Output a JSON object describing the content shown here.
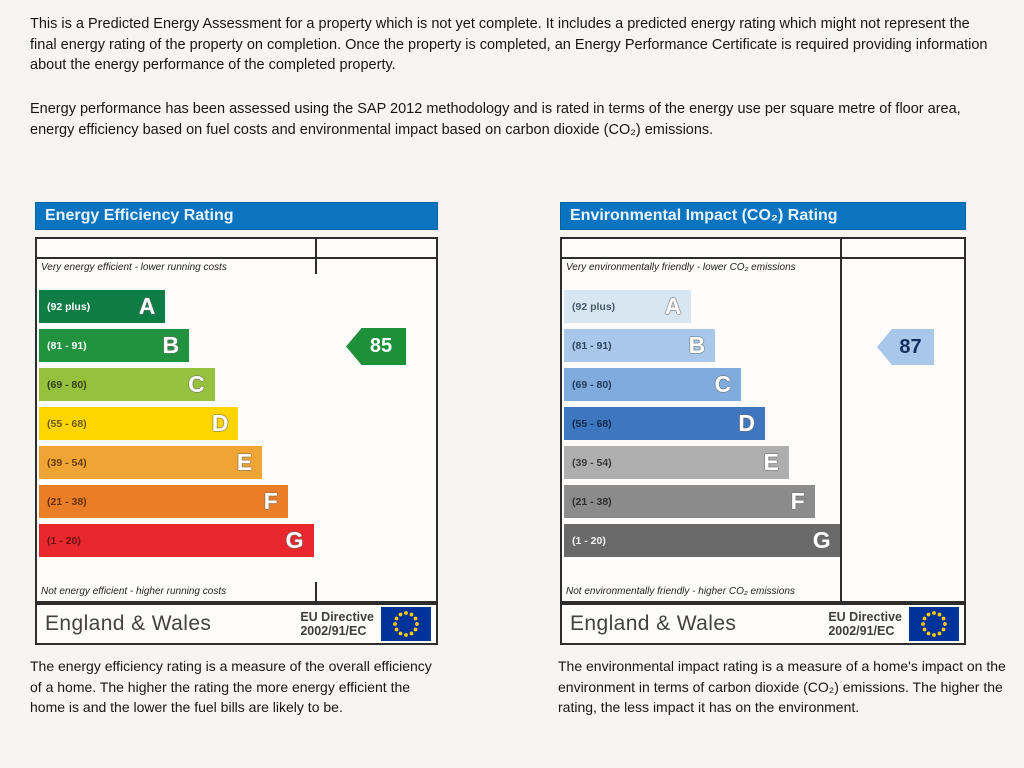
{
  "intro": {
    "paragraph_1": "This is a Predicted Energy Assessment for a property which is not yet complete. It includes a predicted energy rating which might not represent the final energy rating of the property on completion. Once the property is completed, an Energy Performance Certificate is required providing information about the energy performance of the completed property.",
    "paragraph_2": "Energy performance has been assessed using the SAP 2012 methodology and is rated in terms of the energy use per square metre of floor area, energy efficiency based on fuel costs and environmental impact based on carbon dioxide (CO₂) emissions."
  },
  "energy_chart": {
    "title": "Energy Efficiency Rating",
    "header_color": "#0b74c0",
    "top_caption": "Very energy efficient - lower running costs",
    "bottom_caption": "Not energy efficient - higher running costs",
    "current_rating": "85",
    "arrow_color": "#1e9038",
    "arrow_text_color": "#ffffff",
    "bands": [
      {
        "letter": "A",
        "range": "(92 plus)",
        "color": "#0e7c45",
        "label_color": "#ffffff",
        "width_pct": 32
      },
      {
        "letter": "B",
        "range": "(81 - 91)",
        "color": "#21923d",
        "label_color": "#ffffff",
        "width_pct": 38
      },
      {
        "letter": "C",
        "range": "(69 - 80)",
        "color": "#95c13d",
        "label_color": "#31411a",
        "width_pct": 44.5
      },
      {
        "letter": "D",
        "range": "(55 - 68)",
        "color": "#ffd500",
        "label_color": "#6b5d14",
        "width_pct": 50.5
      },
      {
        "letter": "E",
        "range": "(39 - 54)",
        "color": "#f0a433",
        "label_color": "#653f12",
        "width_pct": 56.5
      },
      {
        "letter": "F",
        "range": "(21 - 38)",
        "color": "#e97e27",
        "label_color": "#66300f",
        "width_pct": 63
      },
      {
        "letter": "G",
        "range": "(1 - 20)",
        "color": "#e8282d",
        "label_color": "#6d1212",
        "width_pct": 69.5
      }
    ],
    "footer": {
      "region": "England & Wales",
      "directive_line1": "EU Directive",
      "directive_line2": "2002/91/EC"
    },
    "description": "The energy efficiency rating is a measure of the overall efficiency of a home. The higher the rating the more energy efficient the home is and the lower the fuel bills are likely to be."
  },
  "environmental_chart": {
    "title": "Environmental Impact (CO₂) Rating",
    "header_color": "#0b74c0",
    "top_caption": "Very environmentally friendly - lower CO₂ emissions",
    "bottom_caption": "Not environmentally friendly - higher CO₂ emissions",
    "current_rating": "87",
    "arrow_color": "#a9c7e8",
    "arrow_text_color": "#16305e",
    "bands": [
      {
        "letter": "A",
        "range": "(92 plus)",
        "color": "#d8e6f2",
        "label_color": "#49596b",
        "width_pct": 32
      },
      {
        "letter": "B",
        "range": "(81 - 91)",
        "color": "#a9c7e8",
        "label_color": "#2e4763",
        "width_pct": 38
      },
      {
        "letter": "C",
        "range": "(69 - 80)",
        "color": "#7fabdd",
        "label_color": "#1d3a5f",
        "width_pct": 44.5
      },
      {
        "letter": "D",
        "range": "(55 - 68)",
        "color": "#3f76c0",
        "label_color": "#122a4d",
        "width_pct": 50.5
      },
      {
        "letter": "E",
        "range": "(39 - 54)",
        "color": "#aeaeae",
        "label_color": "#3a3a3a",
        "width_pct": 56.5
      },
      {
        "letter": "F",
        "range": "(21 - 38)",
        "color": "#8b8b8b",
        "label_color": "#2e2e2e",
        "width_pct": 63
      },
      {
        "letter": "G",
        "range": "(1 - 20)",
        "color": "#6a6a6a",
        "label_color": "#f2f2f2",
        "width_pct": 69.5
      }
    ],
    "footer": {
      "region": "England & Wales",
      "directive_line1": "EU Directive",
      "directive_line2": "2002/91/EC"
    },
    "description": "The environmental impact rating is a measure of a home's impact on the environment in terms of carbon dioxide (CO₂) emissions. The higher the rating, the less impact it has on the environment."
  },
  "flag_colors": {
    "field": "#003399",
    "stars": "#ffcc00"
  },
  "chart_data": [
    {
      "type": "bar",
      "title": "Energy Efficiency Rating",
      "categories": [
        "A (92 plus)",
        "B (81 - 91)",
        "C (69 - 80)",
        "D (55 - 68)",
        "E (39 - 54)",
        "F (21 - 38)",
        "G (1 - 20)"
      ],
      "values": [
        32,
        38,
        44.5,
        50.5,
        56.5,
        63,
        69.5
      ],
      "values_note": "relative bar widths, % of scale column",
      "current_rating": 85,
      "current_rating_band": "B",
      "annotations": [
        "Very energy efficient - lower running costs",
        "Not energy efficient - higher running costs"
      ],
      "legend_position": "none"
    },
    {
      "type": "bar",
      "title": "Environmental Impact (CO₂) Rating",
      "categories": [
        "A (92 plus)",
        "B (81 - 91)",
        "C (69 - 80)",
        "D (55 - 68)",
        "E (39 - 54)",
        "F (21 - 38)",
        "G (1 - 20)"
      ],
      "values": [
        32,
        38,
        44.5,
        50.5,
        56.5,
        63,
        69.5
      ],
      "values_note": "relative bar widths, % of scale column",
      "current_rating": 87,
      "current_rating_band": "B",
      "annotations": [
        "Very environmentally friendly - lower CO₂ emissions",
        "Not environmentally friendly - higher CO₂ emissions"
      ],
      "legend_position": "none"
    }
  ]
}
